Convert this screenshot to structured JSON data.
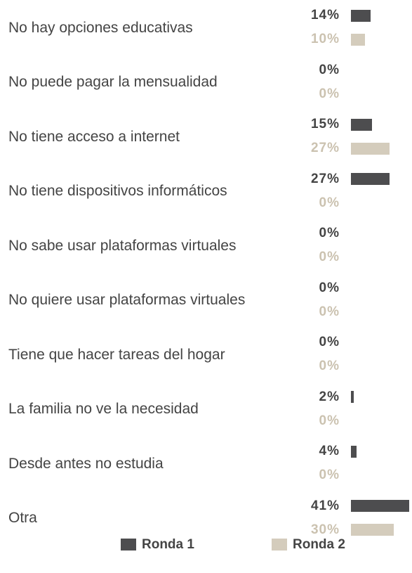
{
  "chart_data": {
    "type": "bar",
    "categories": [
      "No hay opciones educativas",
      "No puede pagar la mensualidad",
      "No tiene acceso a internet",
      "No tiene dispositivos informáticos",
      "No sabe usar plataformas virtuales",
      "No quiere usar plataformas virtuales",
      "Tiene que hacer tareas del hogar",
      "La familia no ve la necesidad",
      "Desde antes no estudia",
      "Otra"
    ],
    "series": [
      {
        "name": "Ronda 1",
        "color": "#4d4d4f",
        "label_color": "#444444",
        "values": [
          14,
          0,
          15,
          27,
          0,
          0,
          0,
          2,
          4,
          41
        ],
        "value_labels": [
          "14%",
          "0%",
          "15%",
          "27%",
          "0%",
          "0%",
          "0%",
          "2%",
          "4%",
          "41%"
        ]
      },
      {
        "name": "Ronda 2",
        "color": "#d4ccbc",
        "label_color": "#cbc2b0",
        "values": [
          10,
          0,
          27,
          0,
          0,
          0,
          0,
          0,
          0,
          30
        ],
        "value_labels": [
          "10%",
          "0%",
          "27%",
          "0%",
          "0%",
          "0%",
          "0%",
          "0%",
          "0%",
          "30%"
        ]
      }
    ]
  }
}
